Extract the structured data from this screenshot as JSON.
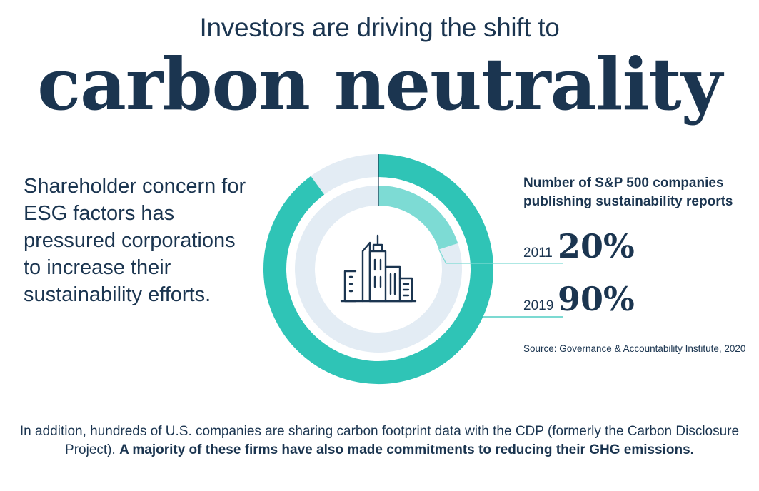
{
  "header": {
    "subtitle": "Investors are driving the shift to",
    "title": "carbon neutrality"
  },
  "intro": {
    "text": "Shareholder concern for ESG factors has pressured corporations to increase their sustainability efforts."
  },
  "colors": {
    "navy": "#1b3550",
    "teal_dark": "#2fc4b6",
    "teal_light": "#7ddbd4",
    "ring_bg": "#e3ecf4"
  },
  "icon": {
    "name": "city-buildings-icon"
  },
  "chart_data": {
    "type": "pie",
    "title": "Number of S&P 500 companies publishing sustainability reports",
    "series": [
      {
        "label": "2011",
        "value": 20,
        "display": "20%"
      },
      {
        "label": "2019",
        "value": 90,
        "display": "90%"
      }
    ],
    "unit": "%",
    "source": "Source: Governance & Accountability Institute, 2020"
  },
  "footer": {
    "text_normal": "In addition, hundreds of U.S. companies are sharing carbon footprint data with the CDP (formerly the Carbon Disclosure Project).",
    "text_bold": "A majority of these firms have also made commitments to reducing their GHG emissions."
  }
}
